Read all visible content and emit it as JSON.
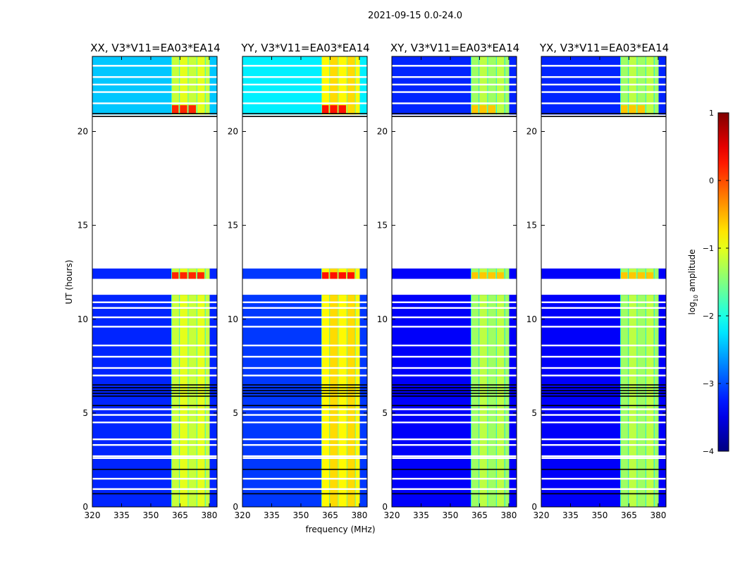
{
  "chart_data": {
    "type": "heatmap",
    "suptitle": "2021-09-15 0.0-24.0",
    "xlabel": "frequency (MHz)",
    "ylabel": "UT (hours)",
    "xlim": [
      320,
      384
    ],
    "ylim": [
      0,
      24
    ],
    "xticks": [
      320,
      335,
      350,
      365,
      380
    ],
    "yticks": [
      0,
      5,
      10,
      15,
      20
    ],
    "data_blocks_hours": [
      [
        0,
        11.3
      ],
      [
        12.15,
        12.7
      ],
      [
        20.9,
        24
      ]
    ],
    "flagged_rows_hours": [
      0.95,
      1.5,
      2.6,
      2.7,
      3.3,
      3.6,
      4.5,
      4.9,
      5.2,
      7.0,
      7.4,
      8.0,
      8.6,
      9.6,
      10.1,
      10.6,
      10.9,
      21.5,
      22.1,
      22.5,
      22.9,
      23.5
    ],
    "dark_rows_hours": [
      0.7,
      2.0,
      5.4,
      5.9,
      6.05,
      6.2,
      6.35,
      6.5,
      20.8,
      20.95
    ],
    "subbands_mhz": [
      [
        360.5,
        364.6
      ],
      [
        364.6,
        369.0
      ],
      [
        369.0,
        373.5
      ],
      [
        373.5,
        377.8
      ],
      [
        377.8,
        380.2
      ]
    ],
    "panels": [
      {
        "title": "XX, V3*V11=EA03*EA14",
        "background_low": -3.2,
        "background_top": -2.4,
        "band": -1.1,
        "band_top_edge": 0.2
      },
      {
        "title": "YY, V3*V11=EA03*EA14",
        "background_low": -3.1,
        "background_top": -2.2,
        "band": -0.8,
        "band_top_edge": 0.3
      },
      {
        "title": "XY, V3*V11=EA03*EA14",
        "background_low": -3.4,
        "background_top": -3.2,
        "band": -1.3,
        "band_top_edge": -0.6
      },
      {
        "title": "YX, V3*V11=EA03*EA14",
        "background_low": -3.4,
        "background_top": -3.2,
        "band": -1.3,
        "band_top_edge": -0.6
      }
    ],
    "colorbar": {
      "label_prefix": "log",
      "label_sub": "10",
      "label_suffix": " amplitude",
      "range": [
        -4,
        1
      ],
      "ticks": [
        -4,
        -3,
        -2,
        -1,
        0,
        1
      ],
      "tick_labels": [
        "−4",
        "−3",
        "−2",
        "−1",
        "0",
        "1"
      ],
      "colormap": "jet"
    }
  }
}
